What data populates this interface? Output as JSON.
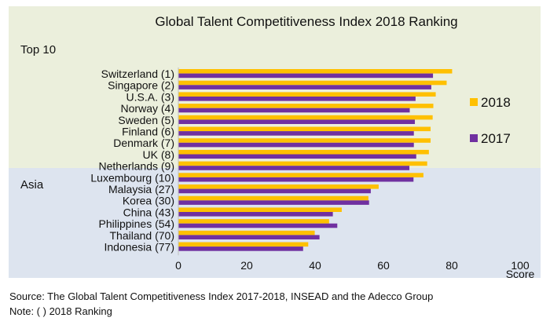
{
  "chart_data": {
    "type": "bar",
    "orientation": "horizontal",
    "title": "Global Talent Competitiveness Index 2018 Ranking",
    "xlabel": "Score",
    "xlim": [
      0,
      100
    ],
    "xticks": [
      "0",
      "20",
      "40",
      "60",
      "80",
      "100"
    ],
    "groups": [
      {
        "label": "Top 10",
        "color": "#ebefdc"
      },
      {
        "label": "Asia",
        "color": "#dde4ef"
      }
    ],
    "categories": [
      "Switzerland (1)",
      "Singapore (2)",
      "U.S.A. (3)",
      "Norway (4)",
      "Sweden (5)",
      "Finland (6)",
      "Denmark (7)",
      "UK (8)",
      "Netherlands (9)",
      "Luxembourg (10)",
      "Malaysia (27)",
      "Korea (30)",
      "China (43)",
      "Philippines (54)",
      "Thailand (70)",
      "Indonesia (77)"
    ],
    "category_group": [
      "Top 10",
      "Top 10",
      "Top 10",
      "Top 10",
      "Top 10",
      "Top 10",
      "Top 10",
      "Top 10",
      "Top 10",
      "Top 10",
      "Asia",
      "Asia",
      "Asia",
      "Asia",
      "Asia",
      "Asia"
    ],
    "series": [
      {
        "name": "2018",
        "color": "#ffc000",
        "values": [
          80.1,
          78.5,
          75.3,
          74.6,
          74.4,
          73.8,
          73.8,
          73.3,
          72.8,
          71.7,
          58.6,
          55.6,
          47.8,
          44.1,
          39.9,
          38.0
        ]
      },
      {
        "name": "2017",
        "color": "#7030a0",
        "values": [
          74.5,
          74.0,
          69.4,
          67.7,
          69.2,
          68.9,
          68.9,
          69.6,
          67.6,
          68.8,
          56.3,
          55.8,
          45.2,
          46.5,
          41.3,
          36.5
        ]
      }
    ],
    "legend_position": "right"
  },
  "footer": {
    "source": "Source: The Global Talent Competitiveness Index 2017-2018, INSEAD and the Adecco Group",
    "note": "Note: ( ) 2018 Ranking"
  }
}
